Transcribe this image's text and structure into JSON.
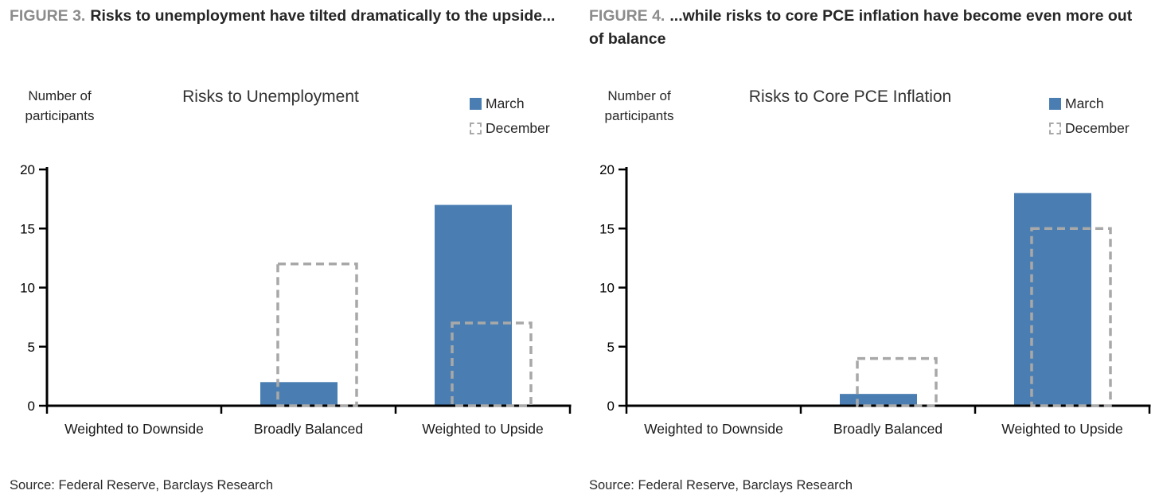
{
  "panels": [
    {
      "figure_label": "FIGURE 3.",
      "heading": "Risks to unemployment have tilted dramatically to the upside...",
      "source": "Source: Federal Reserve, Barclays Research"
    },
    {
      "figure_label": "FIGURE 4.",
      "heading": "...while risks to core PCE inflation have become even more out of balance",
      "source": "Source: Federal Reserve, Barclays Research"
    }
  ],
  "chart_data": [
    {
      "type": "bar",
      "title": "Risks to Unemployment",
      "ylabel": "Number of participants",
      "xlabel": "",
      "categories": [
        "Weighted to Downside",
        "Broadly Balanced",
        "Weighted to Upside"
      ],
      "series": [
        {
          "name": "March",
          "values": [
            0,
            2,
            17
          ],
          "style": "solid",
          "color": "#4A7EB2"
        },
        {
          "name": "December",
          "values": [
            0,
            12,
            7
          ],
          "style": "dashed-outline",
          "color": "#A8A8A8"
        }
      ],
      "ylim": [
        0,
        20
      ],
      "yticks": [
        0,
        5,
        10,
        15,
        20
      ],
      "grid": false,
      "legend_position": "top-right",
      "axis_color": "#000000"
    },
    {
      "type": "bar",
      "title": "Risks to Core PCE Inflation",
      "ylabel": "Number of participants",
      "xlabel": "",
      "categories": [
        "Weighted to Downside",
        "Broadly Balanced",
        "Weighted to Upside"
      ],
      "series": [
        {
          "name": "March",
          "values": [
            0,
            1,
            18
          ],
          "style": "solid",
          "color": "#4A7EB2"
        },
        {
          "name": "December",
          "values": [
            0,
            4,
            15
          ],
          "style": "dashed-outline",
          "color": "#A8A8A8"
        }
      ],
      "ylim": [
        0,
        20
      ],
      "yticks": [
        0,
        5,
        10,
        15,
        20
      ],
      "grid": false,
      "legend_position": "top-right",
      "axis_color": "#000000"
    }
  ]
}
